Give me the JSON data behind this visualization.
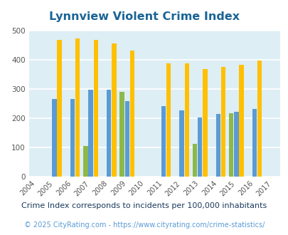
{
  "title": "Lynnview Violent Crime Index",
  "title_color": "#1a6496",
  "subtitle": "Crime Index corresponds to incidents per 100,000 inhabitants",
  "footer": "© 2025 CityRating.com - https://www.cityrating.com/crime-statistics/",
  "years": [
    2004,
    2005,
    2006,
    2007,
    2008,
    2009,
    2010,
    2011,
    2012,
    2013,
    2014,
    2015,
    2016,
    2017
  ],
  "lynnview": {
    "2007": 103,
    "2009": 290,
    "2013": 110,
    "2015": 217
  },
  "kentucky": {
    "2005": 266,
    "2006": 264,
    "2007": 298,
    "2008": 298,
    "2009": 258,
    "2011": 240,
    "2012": 225,
    "2013": 202,
    "2014": 214,
    "2015": 220,
    "2016": 232
  },
  "national": {
    "2005": 469,
    "2006": 474,
    "2007": 467,
    "2008": 455,
    "2009": 432,
    "2011": 387,
    "2012": 387,
    "2013": 368,
    "2014": 376,
    "2015": 383,
    "2016": 397
  },
  "bar_width": 0.28,
  "ylim": [
    0,
    500
  ],
  "yticks": [
    0,
    100,
    200,
    300,
    400,
    500
  ],
  "plot_bg_color": "#ddeef5",
  "lynnview_color": "#8db84a",
  "kentucky_color": "#5b9bd5",
  "national_color": "#ffc000",
  "grid_color": "#ffffff",
  "subtitle_color": "#1a3a5c",
  "footer_color": "#5b9bd5"
}
